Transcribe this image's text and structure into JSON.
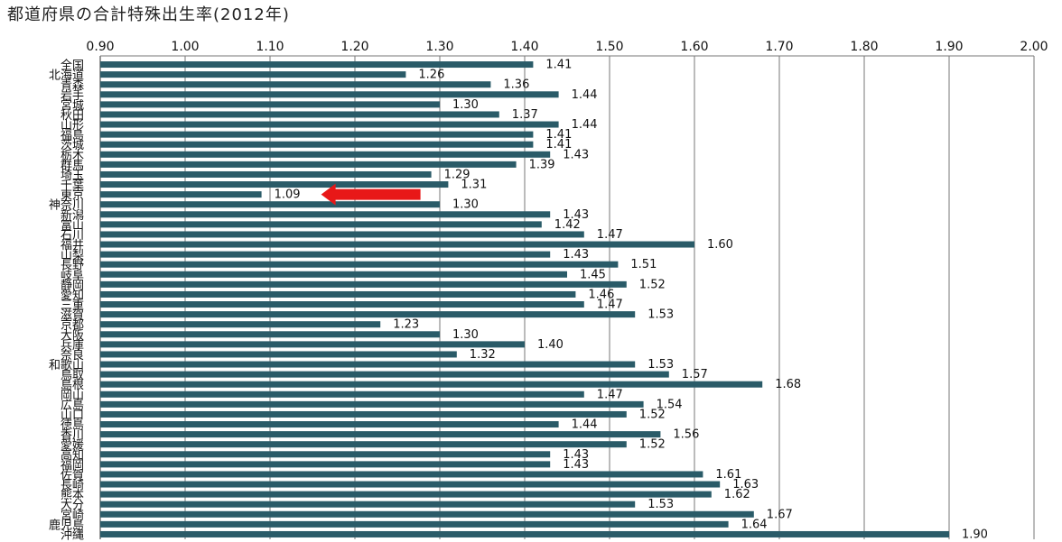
{
  "chart_data": {
    "type": "bar",
    "orientation": "horizontal",
    "title": "都道府県の合計特殊出生率(2012年)",
    "xlim": [
      0.9,
      2.0
    ],
    "ticks": [
      "0.90",
      "1.00",
      "1.10",
      "1.20",
      "1.30",
      "1.40",
      "1.50",
      "1.60",
      "1.70",
      "1.80",
      "1.90",
      "2.00"
    ],
    "grid": true,
    "bar_color": "#2a5b68",
    "highlight_arrow_color": "#e81818",
    "highlight_category": "東京",
    "categories": [
      "全国",
      "北海道",
      "青森",
      "岩手",
      "宮城",
      "秋田",
      "山形",
      "福島",
      "茨城",
      "栃木",
      "群馬",
      "埼玉",
      "千葉",
      "東京",
      "神奈川",
      "新潟",
      "富山",
      "石川",
      "福井",
      "山梨",
      "長野",
      "岐阜",
      "静岡",
      "愛知",
      "三重",
      "滋賀",
      "京都",
      "大阪",
      "兵庫",
      "奈良",
      "和歌山",
      "鳥取",
      "島根",
      "岡山",
      "広島",
      "山口",
      "徳島",
      "香川",
      "愛媛",
      "高知",
      "福岡",
      "佐賀",
      "長崎",
      "熊本",
      "大分",
      "宮崎",
      "鹿児島",
      "沖縄"
    ],
    "values": [
      1.41,
      1.26,
      1.36,
      1.44,
      1.3,
      1.37,
      1.44,
      1.41,
      1.41,
      1.43,
      1.39,
      1.29,
      1.31,
      1.09,
      1.3,
      1.43,
      1.42,
      1.47,
      1.6,
      1.43,
      1.51,
      1.45,
      1.52,
      1.46,
      1.47,
      1.53,
      1.23,
      1.3,
      1.4,
      1.32,
      1.53,
      1.57,
      1.68,
      1.47,
      1.54,
      1.52,
      1.44,
      1.56,
      1.52,
      1.43,
      1.43,
      1.61,
      1.63,
      1.62,
      1.53,
      1.67,
      1.64,
      1.9
    ],
    "value_labels": [
      "1.41",
      "1.26",
      "1.36",
      "1.44",
      "1.30",
      "1.37",
      "1.44",
      "1.41",
      "1.41",
      "1.43",
      "1.39",
      "1.29",
      "1.31",
      "1.09",
      "1.30",
      "1.43",
      "1.42",
      "1.47",
      "1.60",
      "1.43",
      "1.51",
      "1.45",
      "1.52",
      "1.46",
      "1.47",
      "1.53",
      "1.23",
      "1.30",
      "1.40",
      "1.32",
      "1.53",
      "1.57",
      "1.68",
      "1.47",
      "1.54",
      "1.52",
      "1.44",
      "1.56",
      "1.52",
      "1.43",
      "1.43",
      "1.61",
      "1.63",
      "1.62",
      "1.53",
      "1.67",
      "1.64",
      "1.90"
    ]
  }
}
